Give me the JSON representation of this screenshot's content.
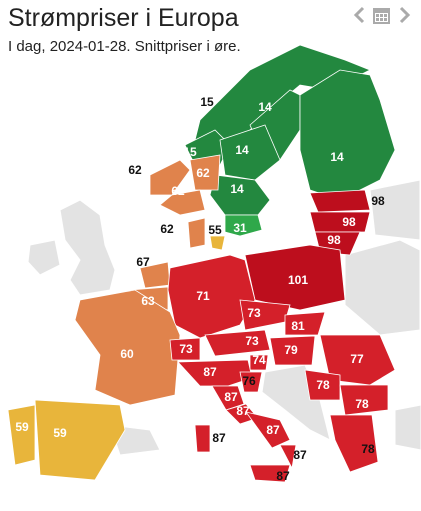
{
  "header": {
    "title": "Strømpriser i Europa",
    "subtitle": "I dag, 2024-01-28. Snittpriser i øre."
  },
  "regions": [
    {
      "value": 15,
      "color": "#23883f"
    },
    {
      "value": 14,
      "color": "#23883f"
    },
    {
      "value": 14,
      "color": "#23883f"
    },
    {
      "value": 15,
      "color": "#23883f"
    },
    {
      "value": 14,
      "color": "#23883f"
    },
    {
      "value": 14,
      "color": "#23883f"
    },
    {
      "value": 31,
      "color": "#2fa84a"
    },
    {
      "value": 62,
      "color": "#e0834c"
    },
    {
      "value": 62,
      "color": "#e0834c"
    },
    {
      "value": 62,
      "color": "#e0834c"
    },
    {
      "value": 62,
      "color": "#e0834c"
    },
    {
      "value": 55,
      "color": "#e8b53b"
    },
    {
      "value": 98,
      "color": "#bd0e1d"
    },
    {
      "value": 98,
      "color": "#bd0e1d"
    },
    {
      "value": 98,
      "color": "#bd0e1d"
    },
    {
      "value": 67,
      "color": "#e0834c"
    },
    {
      "value": 63,
      "color": "#e0834c"
    },
    {
      "value": 101,
      "color": "#bd0e1d"
    },
    {
      "value": 71,
      "color": "#d4202a"
    },
    {
      "value": 60,
      "color": "#e0834c"
    },
    {
      "value": 73,
      "color": "#d4202a"
    },
    {
      "value": 81,
      "color": "#d4202a"
    },
    {
      "value": 73,
      "color": "#d4202a"
    },
    {
      "value": 73,
      "color": "#d4202a"
    },
    {
      "value": 79,
      "color": "#d4202a"
    },
    {
      "value": 77,
      "color": "#d4202a"
    },
    {
      "value": 74,
      "color": "#d4202a"
    },
    {
      "value": 87,
      "color": "#d4202a"
    },
    {
      "value": 76,
      "color": "#d4202a"
    },
    {
      "value": 78,
      "color": "#d4202a"
    },
    {
      "value": 78,
      "color": "#d4202a"
    },
    {
      "value": 87,
      "color": "#d4202a"
    },
    {
      "value": 87,
      "color": "#d4202a"
    },
    {
      "value": 59,
      "color": "#e8b53b"
    },
    {
      "value": 59,
      "color": "#e8b53b"
    },
    {
      "value": 87,
      "color": "#d4202a"
    },
    {
      "value": 87,
      "color": "#d4202a"
    },
    {
      "value": 87,
      "color": "#d4202a"
    },
    {
      "value": 78,
      "color": "#d4202a"
    },
    {
      "value": 87,
      "color": "#d4202a"
    }
  ]
}
